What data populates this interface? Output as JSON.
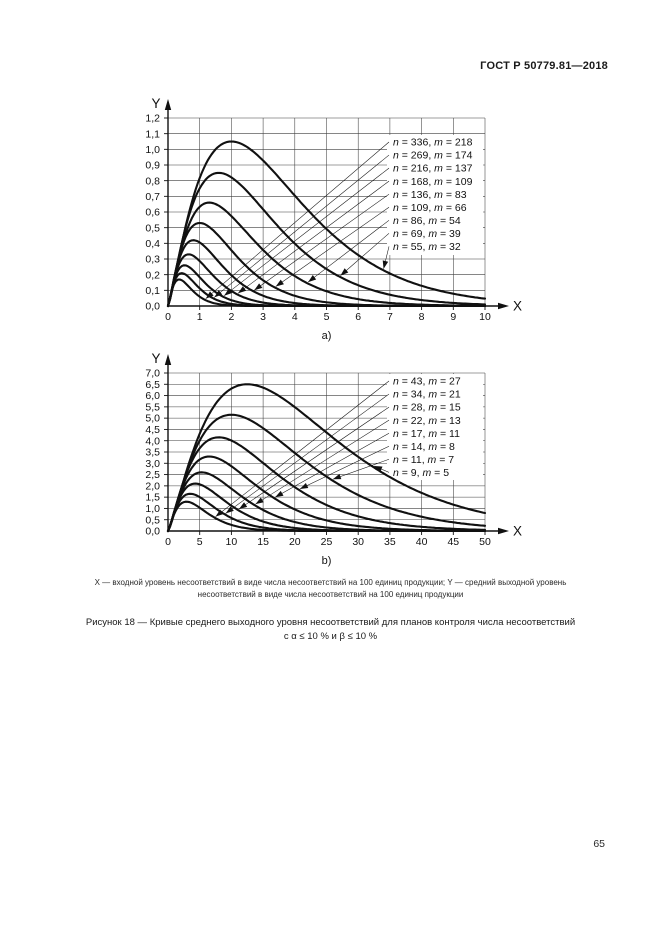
{
  "page": {
    "header": "ГОСТ Р 50779.81—2018",
    "page_number": "65",
    "footnote_line1": "X — входной уровень несоответствий в виде числа несоответствий на 100 единиц продукции; Y — средний выходной уровень",
    "footnote_line2": "несоответствий в виде числа несоответствий на 100 единиц продукции",
    "caption_line1": "Рисунок 18 — Кривые среднего выходного уровня несоответствий для планов контроля числа несоответствий",
    "caption_line2": "с α ≤ 10 % и β ≤ 10 %"
  },
  "colors": {
    "ink": "#111111",
    "grid": "#3f3f3f",
    "background": "#ffffff"
  },
  "chart_data": [
    {
      "type": "line",
      "panel_label": "a)",
      "xlabel": "X",
      "ylabel": "Y",
      "xlim": [
        0,
        10
      ],
      "xstep": 1,
      "ylim": [
        0,
        1.2
      ],
      "ystep": 0.1,
      "grid": true,
      "legend_position": "inside-right",
      "curve_shape_exponent": 1.3,
      "legend_note": "each curve peaks at (peak_x, peak_y); arrow_x = x-position where legend leader arrow touches the curve",
      "series": [
        {
          "n": 336,
          "m": 218,
          "peak_x": 0.35,
          "peak_y": 0.17,
          "arrow_x": 1.19
        },
        {
          "n": 269,
          "m": 174,
          "peak_x": 0.43,
          "peak_y": 0.21,
          "arrow_x": 1.46
        },
        {
          "n": 216,
          "m": 137,
          "peak_x": 0.52,
          "peak_y": 0.26,
          "arrow_x": 1.77
        },
        {
          "n": 168,
          "m": 109,
          "peak_x": 0.65,
          "peak_y": 0.33,
          "arrow_x": 2.21
        },
        {
          "n": 136,
          "m": 83,
          "peak_x": 0.8,
          "peak_y": 0.42,
          "arrow_x": 2.72
        },
        {
          "n": 109,
          "m": 66,
          "peak_x": 1.0,
          "peak_y": 0.53,
          "arrow_x": 3.4
        },
        {
          "n": 86,
          "m": 54,
          "peak_x": 1.3,
          "peak_y": 0.66,
          "arrow_x": 4.42
        },
        {
          "n": 69,
          "m": 39,
          "peak_x": 1.6,
          "peak_y": 0.85,
          "arrow_x": 5.44
        },
        {
          "n": 55,
          "m": 32,
          "peak_x": 2.0,
          "peak_y": 1.05,
          "arrow_x": 6.8
        }
      ]
    },
    {
      "type": "line",
      "panel_label": "b)",
      "xlabel": "X",
      "ylabel": "Y",
      "xlim": [
        0,
        50
      ],
      "xstep": 5,
      "ylim": [
        0,
        7
      ],
      "ystep": 0.5,
      "grid": true,
      "legend_position": "inside-right",
      "curve_shape_exponent": 1.3,
      "series": [
        {
          "n": 43,
          "m": 27,
          "peak_x": 2.9,
          "peak_y": 1.3,
          "arrow_x": 7.5
        },
        {
          "n": 34,
          "m": 21,
          "peak_x": 3.5,
          "peak_y": 1.65,
          "arrow_x": 9.1
        },
        {
          "n": 28,
          "m": 15,
          "peak_x": 4.3,
          "peak_y": 2.1,
          "arrow_x": 11.2
        },
        {
          "n": 22,
          "m": 13,
          "peak_x": 5.3,
          "peak_y": 2.6,
          "arrow_x": 13.8
        },
        {
          "n": 17,
          "m": 11,
          "peak_x": 6.5,
          "peak_y": 3.3,
          "arrow_x": 16.9
        },
        {
          "n": 14,
          "m": 8,
          "peak_x": 8.0,
          "peak_y": 4.15,
          "arrow_x": 20.8
        },
        {
          "n": 11,
          "m": 7,
          "peak_x": 10.0,
          "peak_y": 5.15,
          "arrow_x": 26.0
        },
        {
          "n": 9,
          "m": 5,
          "peak_x": 12.5,
          "peak_y": 6.5,
          "arrow_x": 32.5
        }
      ]
    }
  ]
}
